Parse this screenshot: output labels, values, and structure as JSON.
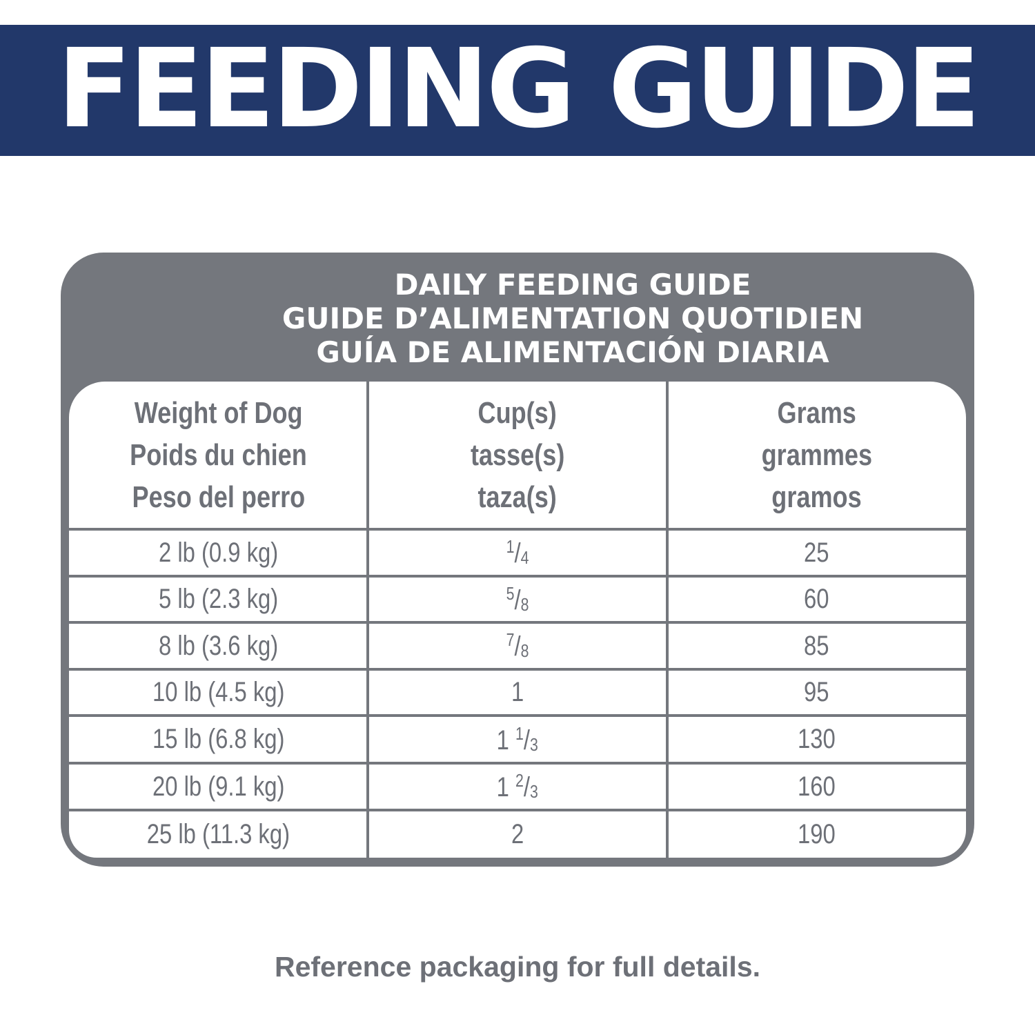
{
  "banner": {
    "title": "FEEDING GUIDE",
    "color": "#22386a"
  },
  "card": {
    "title_lines": [
      "DAILY FEEDING GUIDE",
      "GUIDE D’ALIMENTATION QUOTIDIEN",
      "GUÍA DE ALIMENTACIÓN DIARIA"
    ],
    "color": "#74777d"
  },
  "table": {
    "headers": [
      [
        "Weight of Dog",
        "Poids du chien",
        "Peso del perro"
      ],
      [
        "Cup(s)",
        "tasse(s)",
        "taza(s)"
      ],
      [
        "Grams",
        "grammes",
        "gramos"
      ]
    ],
    "rows": [
      {
        "weight": "2 lb (0.9 kg)",
        "cup_whole": "",
        "cup_num": "1",
        "cup_den": "4",
        "grams": "25"
      },
      {
        "weight": "5 lb (2.3 kg)",
        "cup_whole": "",
        "cup_num": "5",
        "cup_den": "8",
        "grams": "60"
      },
      {
        "weight": "8 lb (3.6 kg)",
        "cup_whole": "",
        "cup_num": "7",
        "cup_den": "8",
        "grams": "85"
      },
      {
        "weight": "10 lb (4.5 kg)",
        "cup_whole": "1",
        "cup_num": "",
        "cup_den": "",
        "grams": "95"
      },
      {
        "weight": "15 lb (6.8 kg)",
        "cup_whole": "1",
        "cup_num": "1",
        "cup_den": "3",
        "grams": "130"
      },
      {
        "weight": "20 lb (9.1 kg)",
        "cup_whole": "1",
        "cup_num": "2",
        "cup_den": "3",
        "grams": "160"
      },
      {
        "weight": "25 lb (11.3 kg)",
        "cup_whole": "2",
        "cup_num": "",
        "cup_den": "",
        "grams": "190"
      }
    ]
  },
  "footer": {
    "text": "Reference packaging for full details."
  }
}
